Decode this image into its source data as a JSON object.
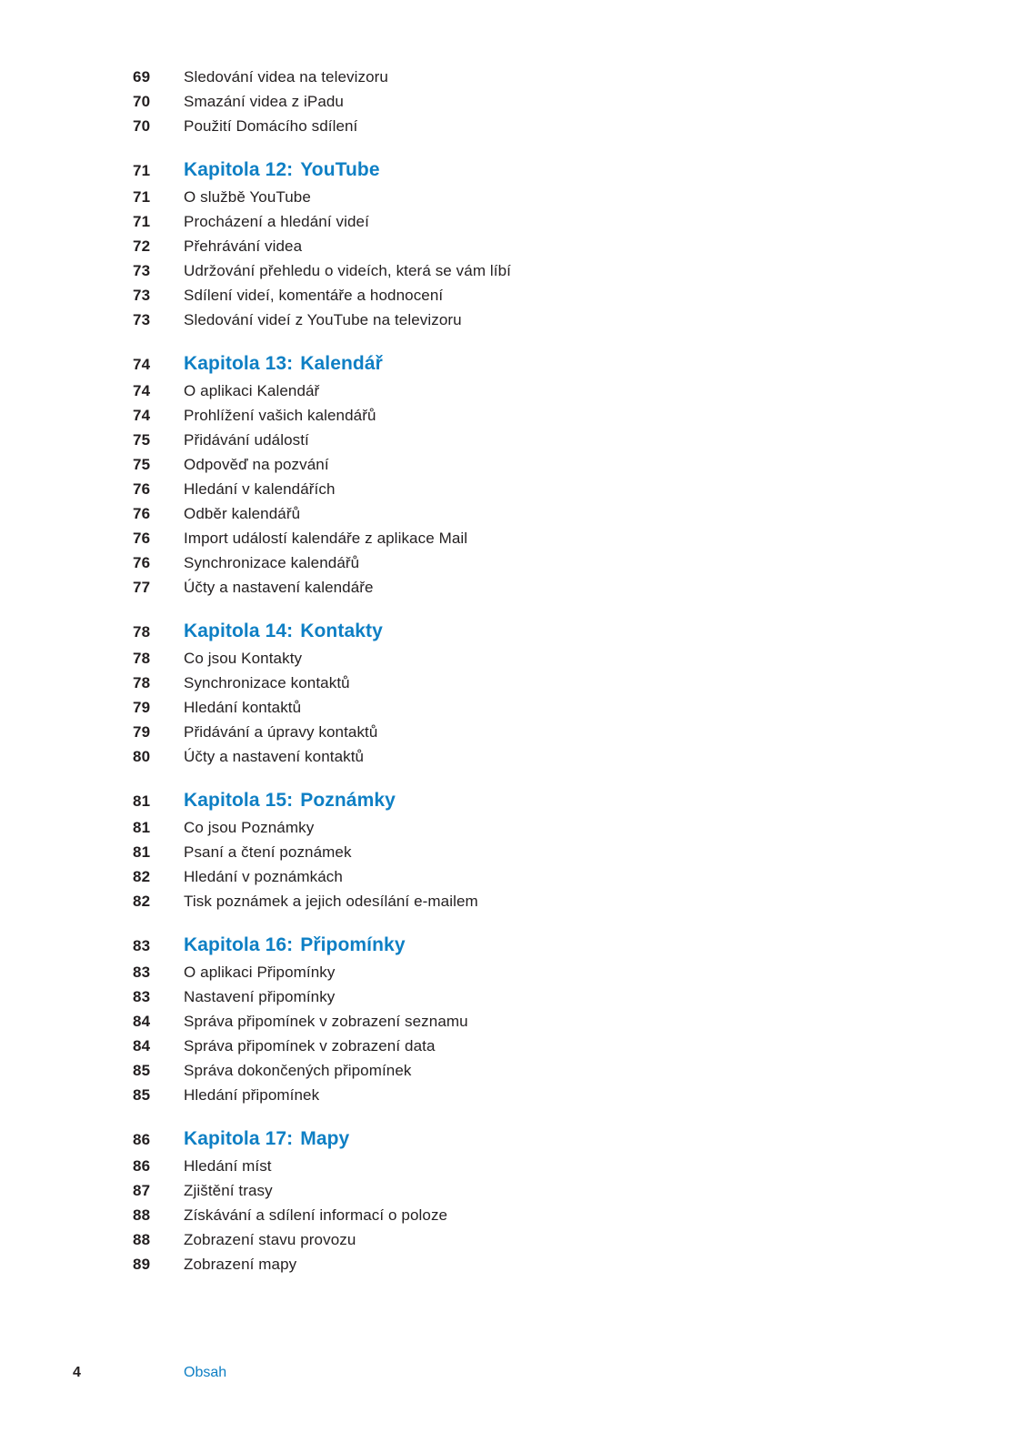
{
  "colors": {
    "accent_blue": "#0e7fc4",
    "text": "#231f20"
  },
  "footer": {
    "page_number": "4",
    "label": "Obsah"
  },
  "toc": {
    "sections": [
      {
        "heading": null,
        "entries": [
          {
            "page": "69",
            "title": "Sledování videa na televizoru"
          },
          {
            "page": "70",
            "title": "Smazání videa z iPadu"
          },
          {
            "page": "70",
            "title": "Použití Domácího sdílení"
          }
        ]
      },
      {
        "heading": {
          "page": "71",
          "label": "Kapitola 12:",
          "name": "YouTube"
        },
        "entries": [
          {
            "page": "71",
            "title": "O službě YouTube"
          },
          {
            "page": "71",
            "title": "Procházení a hledání videí"
          },
          {
            "page": "72",
            "title": "Přehrávání videa"
          },
          {
            "page": "73",
            "title": "Udržování přehledu o videích, která se vám líbí"
          },
          {
            "page": "73",
            "title": "Sdílení videí, komentáře a hodnocení"
          },
          {
            "page": "73",
            "title": "Sledování videí z YouTube na televizoru"
          }
        ]
      },
      {
        "heading": {
          "page": "74",
          "label": "Kapitola 13:",
          "name": "Kalendář"
        },
        "entries": [
          {
            "page": "74",
            "title": "O aplikaci Kalendář"
          },
          {
            "page": "74",
            "title": "Prohlížení vašich kalendářů"
          },
          {
            "page": "75",
            "title": "Přidávání událostí"
          },
          {
            "page": "75",
            "title": "Odpověď na pozvání"
          },
          {
            "page": "76",
            "title": "Hledání v kalendářích"
          },
          {
            "page": "76",
            "title": "Odběr kalendářů"
          },
          {
            "page": "76",
            "title": "Import událostí kalendáře z aplikace Mail"
          },
          {
            "page": "76",
            "title": "Synchronizace kalendářů"
          },
          {
            "page": "77",
            "title": "Účty a nastavení kalendáře"
          }
        ]
      },
      {
        "heading": {
          "page": "78",
          "label": "Kapitola 14:",
          "name": "Kontakty"
        },
        "entries": [
          {
            "page": "78",
            "title": "Co jsou Kontakty"
          },
          {
            "page": "78",
            "title": "Synchronizace kontaktů"
          },
          {
            "page": "79",
            "title": "Hledání kontaktů"
          },
          {
            "page": "79",
            "title": "Přidávání a úpravy kontaktů"
          },
          {
            "page": "80",
            "title": "Účty a nastavení kontaktů"
          }
        ]
      },
      {
        "heading": {
          "page": "81",
          "label": "Kapitola 15:",
          "name": "Poznámky"
        },
        "entries": [
          {
            "page": "81",
            "title": "Co jsou Poznámky"
          },
          {
            "page": "81",
            "title": "Psaní a čtení poznámek"
          },
          {
            "page": "82",
            "title": "Hledání v poznámkách"
          },
          {
            "page": "82",
            "title": "Tisk poznámek a jejich odesílání e-mailem"
          }
        ]
      },
      {
        "heading": {
          "page": "83",
          "label": "Kapitola 16:",
          "name": "Připomínky"
        },
        "entries": [
          {
            "page": "83",
            "title": "O aplikaci Připomínky"
          },
          {
            "page": "83",
            "title": "Nastavení připomínky"
          },
          {
            "page": "84",
            "title": "Správa připomínek v zobrazení seznamu"
          },
          {
            "page": "84",
            "title": "Správa připomínek v zobrazení data"
          },
          {
            "page": "85",
            "title": "Správa dokončených připomínek"
          },
          {
            "page": "85",
            "title": "Hledání připomínek"
          }
        ]
      },
      {
        "heading": {
          "page": "86",
          "label": "Kapitola 17:",
          "name": "Mapy"
        },
        "entries": [
          {
            "page": "86",
            "title": "Hledání míst"
          },
          {
            "page": "87",
            "title": "Zjištění trasy"
          },
          {
            "page": "88",
            "title": "Získávání a sdílení informací o poloze"
          },
          {
            "page": "88",
            "title": "Zobrazení stavu provozu"
          },
          {
            "page": "89",
            "title": "Zobrazení mapy"
          }
        ]
      }
    ]
  }
}
